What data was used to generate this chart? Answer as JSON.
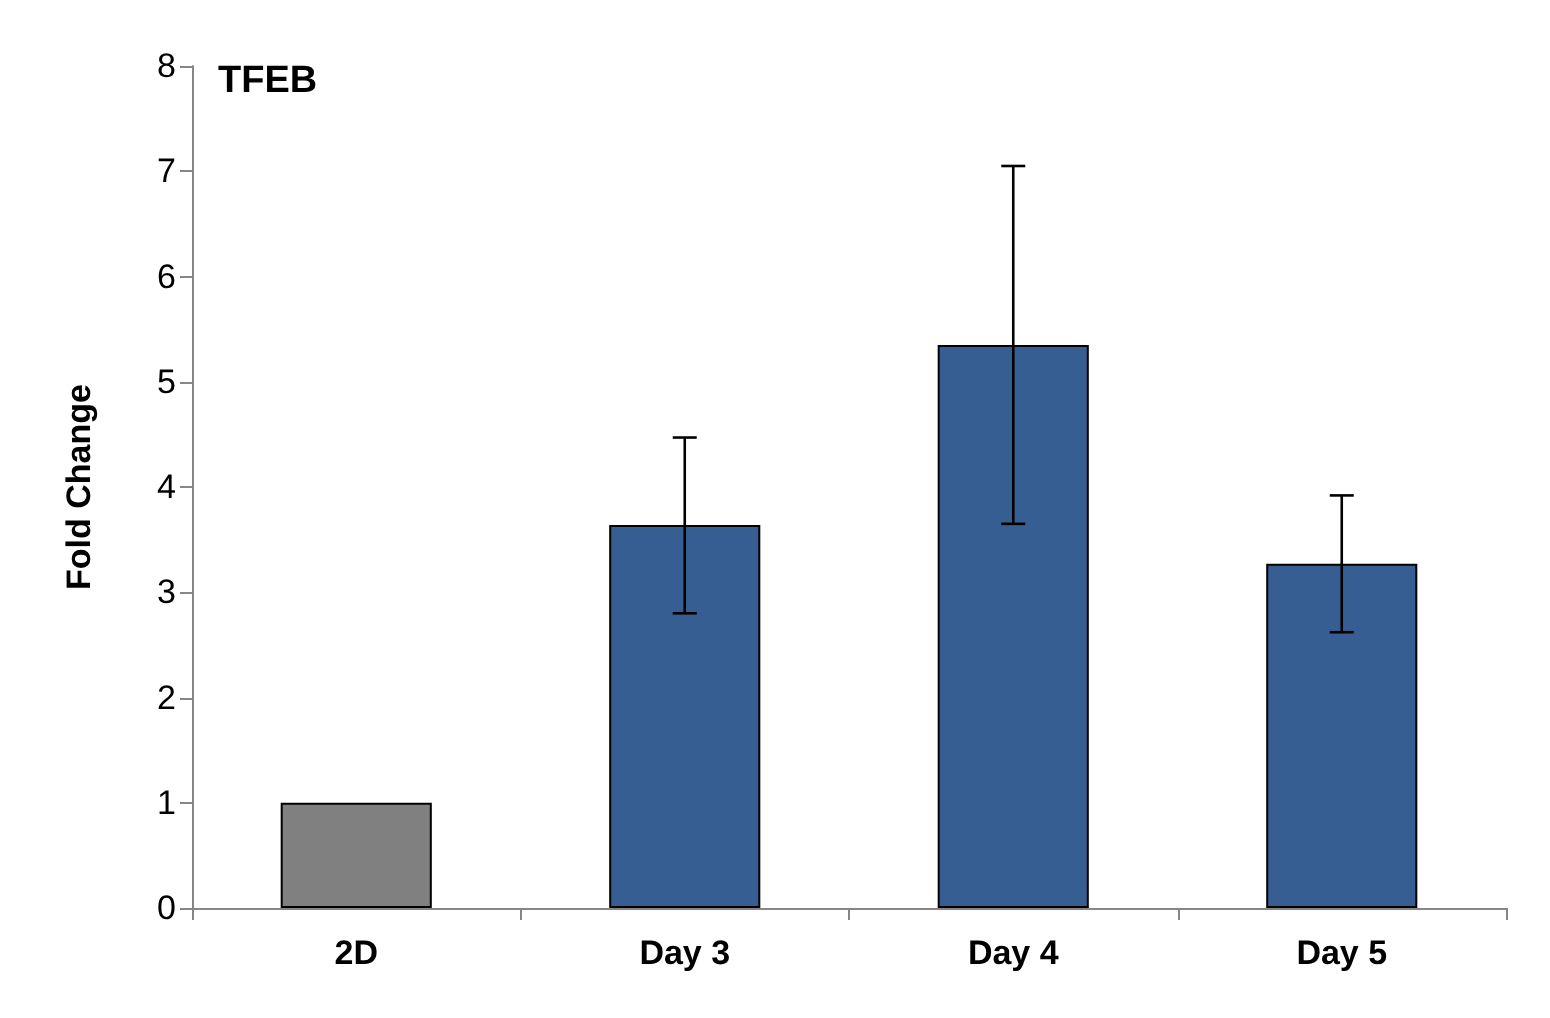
{
  "chart_data": {
    "type": "bar",
    "title": "TFEB",
    "ylabel": "Fold Change",
    "categories": [
      "2D",
      "Day 3",
      "Day 4",
      "Day 5"
    ],
    "values": [
      1,
      3.64,
      5.35,
      3.27
    ],
    "colors": [
      "#808080",
      "#375e92",
      "#375e92",
      "#375e92"
    ],
    "errors": [
      null,
      [
        2.8,
        4.47
      ],
      [
        3.65,
        7.05
      ],
      [
        2.62,
        3.92
      ]
    ],
    "ylim": [
      0,
      8
    ],
    "yticks": [
      0,
      1,
      2,
      3,
      4,
      5,
      6,
      7,
      8
    ],
    "grid": false
  }
}
